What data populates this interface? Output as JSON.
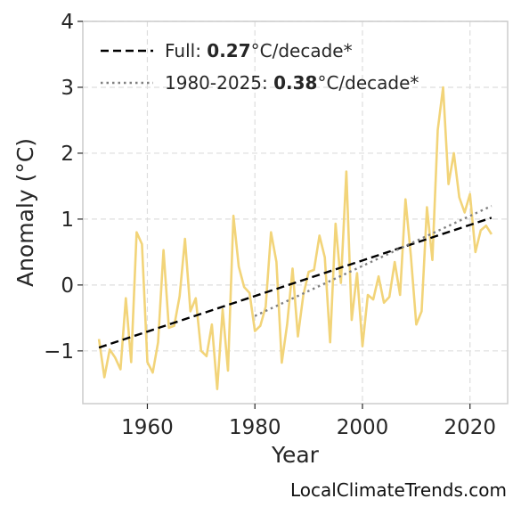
{
  "chart_data": {
    "type": "line",
    "xlabel": "Year",
    "ylabel": "Anomaly (°C)",
    "xlim": [
      1948,
      2027
    ],
    "ylim": [
      -1.8,
      4
    ],
    "x_ticks": [
      1960,
      1980,
      2000,
      2020
    ],
    "y_ticks": [
      -1,
      0,
      1,
      2,
      3,
      4
    ],
    "y_tick_labels": [
      "−1",
      "0",
      "1",
      "2",
      "3",
      "4"
    ],
    "grid": true,
    "legend_position": "top-left",
    "series": [
      {
        "color": "#f2d479",
        "x": [
          1951,
          1952,
          1953,
          1954,
          1955,
          1956,
          1957,
          1958,
          1959,
          1960,
          1961,
          1962,
          1963,
          1964,
          1965,
          1966,
          1967,
          1968,
          1969,
          1970,
          1971,
          1972,
          1973,
          1974,
          1975,
          1976,
          1977,
          1978,
          1979,
          1980,
          1981,
          1982,
          1983,
          1984,
          1985,
          1986,
          1987,
          1988,
          1989,
          1990,
          1991,
          1992,
          1993,
          1994,
          1995,
          1996,
          1997,
          1998,
          1999,
          2000,
          2001,
          2002,
          2003,
          2004,
          2005,
          2006,
          2007,
          2008,
          2009,
          2010,
          2011,
          2012,
          2013,
          2014,
          2015,
          2016,
          2017,
          2018,
          2019,
          2020,
          2021,
          2022,
          2023,
          2024
        ],
        "values": [
          -0.82,
          -1.4,
          -0.98,
          -1.1,
          -1.28,
          -0.2,
          -1.17,
          0.8,
          0.62,
          -1.17,
          -1.33,
          -0.87,
          0.53,
          -0.65,
          -0.62,
          -0.17,
          0.7,
          -0.4,
          -0.2,
          -1.0,
          -1.08,
          -0.6,
          -1.58,
          -0.37,
          -1.3,
          1.05,
          0.28,
          -0.03,
          -0.12,
          -0.7,
          -0.62,
          -0.33,
          0.8,
          0.35,
          -1.18,
          -0.6,
          0.25,
          -0.78,
          -0.15,
          0.2,
          0.23,
          0.75,
          0.42,
          -0.87,
          0.93,
          0.03,
          1.72,
          -0.53,
          0.18,
          -0.93,
          -0.15,
          -0.22,
          0.13,
          -0.27,
          -0.18,
          0.35,
          -0.15,
          1.3,
          0.45,
          -0.6,
          -0.4,
          1.18,
          0.38,
          2.35,
          3.0,
          1.53,
          2.0,
          1.33,
          1.1,
          1.38,
          0.5,
          0.83,
          0.9,
          0.77
        ]
      }
    ],
    "trend_lines": [
      {
        "style": "dashed",
        "color": "#000000",
        "x": [
          1951,
          2024
        ],
        "y": [
          -0.95,
          1.02
        ],
        "label_prefix": "Full: ",
        "label_value": "0.27",
        "label_suffix": "°C/decade*"
      },
      {
        "style": "dotted",
        "color": "#808080",
        "x": [
          1980,
          2024
        ],
        "y": [
          -0.47,
          1.2
        ],
        "label_prefix": "1980-2025: ",
        "label_value": "0.38",
        "label_suffix": "°C/decade*"
      }
    ]
  },
  "credit": "LocalClimateTrends.com"
}
